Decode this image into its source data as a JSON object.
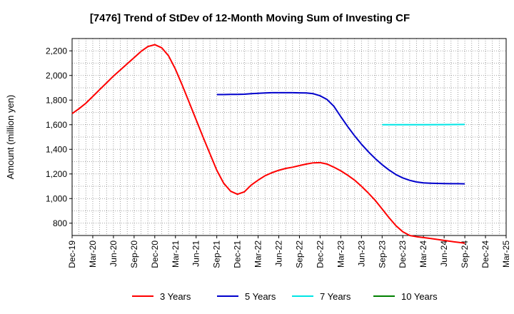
{
  "chart_data": {
    "type": "line",
    "title": "[7476]  Trend of StDev of 12-Month Moving Sum of Investing CF",
    "xlabel": "",
    "ylabel": "Amount (million yen)",
    "ylim": [
      700,
      2300
    ],
    "yticks": [
      800,
      1000,
      1200,
      1400,
      1600,
      1800,
      2000,
      2200
    ],
    "ytick_labels": [
      "800",
      "1,000",
      "1,200",
      "1,400",
      "1,600",
      "1,800",
      "2,000",
      "2,200"
    ],
    "x_categories": [
      "Dec-19",
      "Mar-20",
      "Jun-20",
      "Sep-20",
      "Dec-20",
      "Mar-21",
      "Jun-21",
      "Sep-21",
      "Dec-21",
      "Mar-22",
      "Jun-22",
      "Sep-22",
      "Dec-22",
      "Mar-23",
      "Jun-23",
      "Sep-23",
      "Dec-23",
      "Mar-24",
      "Jun-24",
      "Sep-24",
      "Dec-24",
      "Mar-25"
    ],
    "grid": true,
    "legend_position": "bottom",
    "series": [
      {
        "name": "3 Years",
        "color": "#ff0000",
        "points": [
          [
            "Dec-19",
            1690
          ],
          [
            "Jan-20",
            1730
          ],
          [
            "Feb-20",
            1775
          ],
          [
            "Mar-20",
            1830
          ],
          [
            "Apr-20",
            1885
          ],
          [
            "May-20",
            1940
          ],
          [
            "Jun-20",
            1995
          ],
          [
            "Jul-20",
            2045
          ],
          [
            "Aug-20",
            2095
          ],
          [
            "Sep-20",
            2145
          ],
          [
            "Oct-20",
            2195
          ],
          [
            "Nov-20",
            2235
          ],
          [
            "Dec-20",
            2250
          ],
          [
            "Jan-21",
            2225
          ],
          [
            "Feb-21",
            2160
          ],
          [
            "Mar-21",
            2050
          ],
          [
            "Apr-21",
            1920
          ],
          [
            "May-21",
            1780
          ],
          [
            "Jun-21",
            1640
          ],
          [
            "Jul-21",
            1500
          ],
          [
            "Aug-21",
            1365
          ],
          [
            "Sep-21",
            1230
          ],
          [
            "Oct-21",
            1125
          ],
          [
            "Nov-21",
            1060
          ],
          [
            "Dec-21",
            1035
          ],
          [
            "Jan-22",
            1055
          ],
          [
            "Feb-22",
            1110
          ],
          [
            "Mar-22",
            1150
          ],
          [
            "Apr-22",
            1185
          ],
          [
            "May-22",
            1210
          ],
          [
            "Jun-22",
            1230
          ],
          [
            "Jul-22",
            1245
          ],
          [
            "Aug-22",
            1255
          ],
          [
            "Sep-22",
            1268
          ],
          [
            "Oct-22",
            1280
          ],
          [
            "Nov-22",
            1290
          ],
          [
            "Dec-22",
            1292
          ],
          [
            "Jan-23",
            1280
          ],
          [
            "Feb-23",
            1255
          ],
          [
            "Mar-23",
            1225
          ],
          [
            "Apr-23",
            1190
          ],
          [
            "May-23",
            1150
          ],
          [
            "Jun-23",
            1100
          ],
          [
            "Jul-23",
            1045
          ],
          [
            "Aug-23",
            985
          ],
          [
            "Sep-23",
            915
          ],
          [
            "Oct-23",
            845
          ],
          [
            "Nov-23",
            780
          ],
          [
            "Dec-23",
            730
          ],
          [
            "Jan-24",
            700
          ],
          [
            "Feb-24",
            690
          ],
          [
            "Mar-24",
            683
          ],
          [
            "Apr-24",
            676
          ],
          [
            "May-24",
            668
          ],
          [
            "Jun-24",
            660
          ],
          [
            "Jul-24",
            652
          ],
          [
            "Aug-24",
            645
          ],
          [
            "Sep-24",
            638
          ]
        ]
      },
      {
        "name": "5 Years",
        "color": "#0000cc",
        "points": [
          [
            "Sep-21",
            1845
          ],
          [
            "Oct-21",
            1845
          ],
          [
            "Nov-21",
            1846
          ],
          [
            "Dec-21",
            1846
          ],
          [
            "Jan-22",
            1848
          ],
          [
            "Feb-22",
            1852
          ],
          [
            "Mar-22",
            1855
          ],
          [
            "Apr-22",
            1858
          ],
          [
            "May-22",
            1860
          ],
          [
            "Jun-22",
            1860
          ],
          [
            "Jul-22",
            1860
          ],
          [
            "Aug-22",
            1860
          ],
          [
            "Sep-22",
            1859
          ],
          [
            "Oct-22",
            1858
          ],
          [
            "Nov-22",
            1852
          ],
          [
            "Dec-22",
            1835
          ],
          [
            "Jan-23",
            1805
          ],
          [
            "Feb-23",
            1750
          ],
          [
            "Mar-23",
            1665
          ],
          [
            "Apr-23",
            1585
          ],
          [
            "May-23",
            1510
          ],
          [
            "Jun-23",
            1442
          ],
          [
            "Jul-23",
            1380
          ],
          [
            "Aug-23",
            1325
          ],
          [
            "Sep-23",
            1275
          ],
          [
            "Oct-23",
            1232
          ],
          [
            "Nov-23",
            1195
          ],
          [
            "Dec-23",
            1168
          ],
          [
            "Jan-24",
            1148
          ],
          [
            "Feb-24",
            1135
          ],
          [
            "Mar-24",
            1128
          ],
          [
            "Apr-24",
            1125
          ],
          [
            "May-24",
            1123
          ],
          [
            "Jun-24",
            1122
          ],
          [
            "Jul-24",
            1121
          ],
          [
            "Aug-24",
            1121
          ],
          [
            "Sep-24",
            1120
          ]
        ]
      },
      {
        "name": "7 Years",
        "color": "#00e5e5",
        "points": [
          [
            "Sep-23",
            1600
          ],
          [
            "Dec-23",
            1600
          ],
          [
            "Mar-24",
            1600
          ],
          [
            "Jun-24",
            1601
          ],
          [
            "Sep-24",
            1602
          ]
        ]
      },
      {
        "name": "10 Years",
        "color": "#008000",
        "points": []
      }
    ]
  }
}
